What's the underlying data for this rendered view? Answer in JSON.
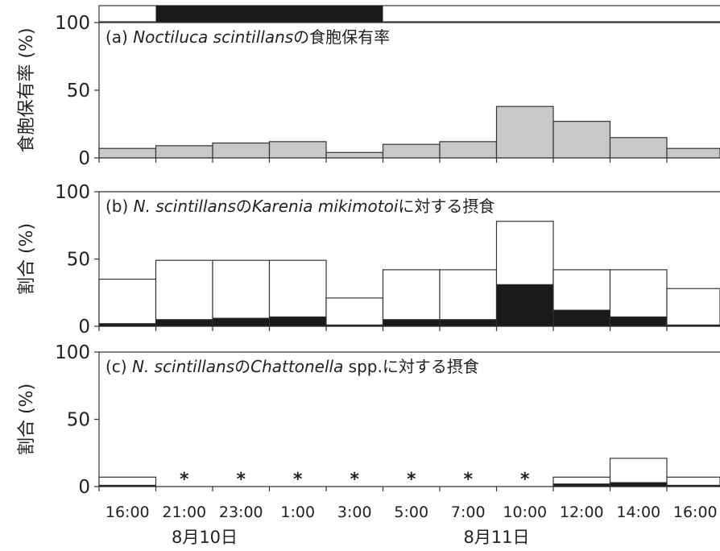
{
  "figure": {
    "x_categories": [
      "16:00",
      "21:00",
      "23:00",
      "1:00",
      "3:00",
      "5:00",
      "7:00",
      "10:00",
      "12:00",
      "14:00",
      "16:00"
    ],
    "date_labels": [
      "8月10日",
      "8月11日"
    ],
    "night_bar": {
      "dark_start_index": 1,
      "dark_end_index": 5
    },
    "colors": {
      "stroke": "#333333",
      "fill_a": "#c8c8c8",
      "dark": "#1a1a1a",
      "open": "#ffffff"
    }
  },
  "chart_data": [
    {
      "type": "bar",
      "panel": "a",
      "title_parts": [
        {
          "text": "(a) ",
          "italic": false
        },
        {
          "text": "Noctiluca scintillans",
          "italic": true
        },
        {
          "text": "の食胞保有率",
          "italic": false
        }
      ],
      "ylabel": "食胞保有率 (%)",
      "ylim": [
        0,
        100
      ],
      "yticks": [
        0,
        50,
        100
      ],
      "categories": [
        "16:00",
        "21:00",
        "23:00",
        "1:00",
        "3:00",
        "5:00",
        "7:00",
        "10:00",
        "12:00",
        "14:00",
        "16:00"
      ],
      "values": [
        7,
        9,
        11,
        12,
        4,
        10,
        12,
        38,
        27,
        15,
        7
      ]
    },
    {
      "type": "bar",
      "panel": "b",
      "title_parts": [
        {
          "text": "(b) ",
          "italic": false
        },
        {
          "text": "N. scintillans",
          "italic": true
        },
        {
          "text": "の",
          "italic": false
        },
        {
          "text": "Karenia mikimotoi",
          "italic": true
        },
        {
          "text": "に対する摂食",
          "italic": false
        }
      ],
      "ylabel": "割合 (%)",
      "ylim": [
        0,
        100
      ],
      "yticks": [
        0,
        50,
        100
      ],
      "categories": [
        "16:00",
        "21:00",
        "23:00",
        "1:00",
        "3:00",
        "5:00",
        "7:00",
        "10:00",
        "12:00",
        "14:00",
        "16:00"
      ],
      "series": [
        {
          "values": [
            35,
            49,
            49,
            49,
            21,
            42,
            42,
            78,
            42,
            42,
            28
          ]
        },
        {
          "values": [
            2,
            5,
            6,
            7,
            1,
            5,
            5,
            31,
            12,
            7,
            1
          ]
        }
      ],
      "asterisks": []
    },
    {
      "type": "bar",
      "panel": "c",
      "title_parts": [
        {
          "text": "(c) ",
          "italic": false
        },
        {
          "text": "N. scintillans",
          "italic": true
        },
        {
          "text": "の",
          "italic": false
        },
        {
          "text": "Chattonella",
          "italic": true
        },
        {
          "text": " spp.に対する摂食",
          "italic": false
        }
      ],
      "ylabel": "割合 (%)",
      "ylim": [
        0,
        100
      ],
      "yticks": [
        0,
        50,
        100
      ],
      "categories": [
        "16:00",
        "21:00",
        "23:00",
        "1:00",
        "3:00",
        "5:00",
        "7:00",
        "10:00",
        "12:00",
        "14:00",
        "16:00"
      ],
      "series": [
        {
          "values": [
            7,
            null,
            null,
            null,
            null,
            null,
            null,
            null,
            7,
            21,
            7
          ]
        },
        {
          "values": [
            1,
            null,
            null,
            null,
            null,
            null,
            null,
            null,
            2,
            3,
            1
          ]
        }
      ],
      "asterisks": [
        1,
        2,
        3,
        4,
        5,
        6,
        7
      ],
      "asterisk_symbol": "*"
    }
  ]
}
